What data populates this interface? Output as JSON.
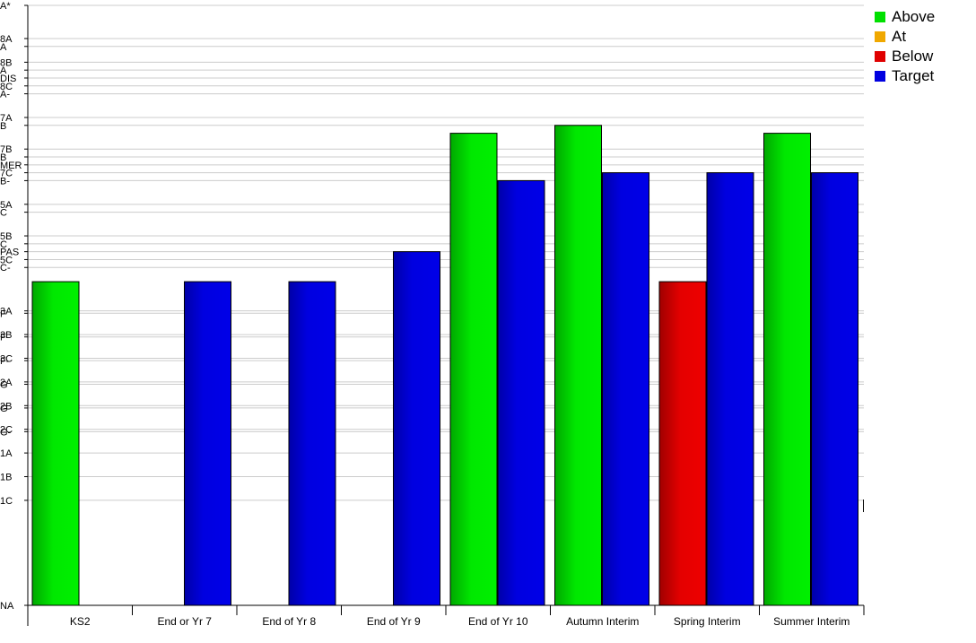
{
  "chart_data": {
    "type": "bar",
    "title": "",
    "xlabel": "",
    "ylabel": "",
    "categories": [
      "KS2",
      "End or Yr 7",
      "End of Yr 8",
      "End of Yr 9",
      "End of Yr 10",
      "Autumn Interim",
      "Spring Interim",
      "Summer Interim"
    ],
    "y_scale": {
      "labels": [
        {
          "label": "NA",
          "level": 0
        },
        {
          "label": "1C",
          "level": 13.3
        },
        {
          "label": "1B",
          "level": 16.3
        },
        {
          "label": "1A",
          "level": 19.3
        },
        {
          "label": "G-",
          "level": 22.0
        },
        {
          "label": "2C",
          "level": 22.3
        },
        {
          "label": "G",
          "level": 25.0
        },
        {
          "label": "2B",
          "level": 25.3
        },
        {
          "label": "G",
          "level": 28.0
        },
        {
          "label": "2A",
          "level": 28.3
        },
        {
          "label": "F-",
          "level": 31.0
        },
        {
          "label": "3C",
          "level": 31.3
        },
        {
          "label": "F",
          "level": 34.0
        },
        {
          "label": "3B",
          "level": 34.3
        },
        {
          "label": "F",
          "level": 37.0
        },
        {
          "label": "3A",
          "level": 37.3
        },
        {
          "label": "C-",
          "level": 42.8
        },
        {
          "label": "5C",
          "level": 43.8
        },
        {
          "label": "PAS",
          "level": 44.8
        },
        {
          "label": "C",
          "level": 45.8
        },
        {
          "label": "5B",
          "level": 46.8
        },
        {
          "label": "C",
          "level": 49.8
        },
        {
          "label": "5A",
          "level": 50.8
        },
        {
          "label": "B-",
          "level": 53.8
        },
        {
          "label": "7C",
          "level": 54.8
        },
        {
          "label": "MER",
          "level": 55.8
        },
        {
          "label": "B",
          "level": 56.8
        },
        {
          "label": "7B",
          "level": 57.8
        },
        {
          "label": "B",
          "level": 60.8
        },
        {
          "label": "7A",
          "level": 61.8
        },
        {
          "label": "A-",
          "level": 64.8
        },
        {
          "label": "8C",
          "level": 65.8
        },
        {
          "label": "DIS",
          "level": 66.8
        },
        {
          "label": "A",
          "level": 67.8
        },
        {
          "label": "8B",
          "level": 68.8
        },
        {
          "label": "A",
          "level": 70.8
        },
        {
          "label": "8A",
          "level": 71.8
        },
        {
          "label": "A*",
          "level": 76.0
        }
      ],
      "ylim": [
        0,
        76.0
      ]
    },
    "series": [
      {
        "name": "Above",
        "color": "#00e000",
        "values": [
          41,
          null,
          null,
          null,
          59.8,
          60.8,
          null,
          59.8
        ]
      },
      {
        "name": "At",
        "color": "#f0a800",
        "values": [
          null,
          null,
          null,
          null,
          null,
          null,
          null,
          null
        ]
      },
      {
        "name": "Below",
        "color": "#e00000",
        "values": [
          null,
          null,
          null,
          null,
          null,
          null,
          41,
          null
        ]
      },
      {
        "name": "Target",
        "color": "#0000e0",
        "values": [
          null,
          41,
          41,
          44.8,
          53.8,
          54.8,
          54.8,
          54.8
        ]
      }
    ],
    "legend": {
      "position": "top-right",
      "entries": [
        "Above",
        "At",
        "Below",
        "Target"
      ]
    },
    "grid": true
  }
}
